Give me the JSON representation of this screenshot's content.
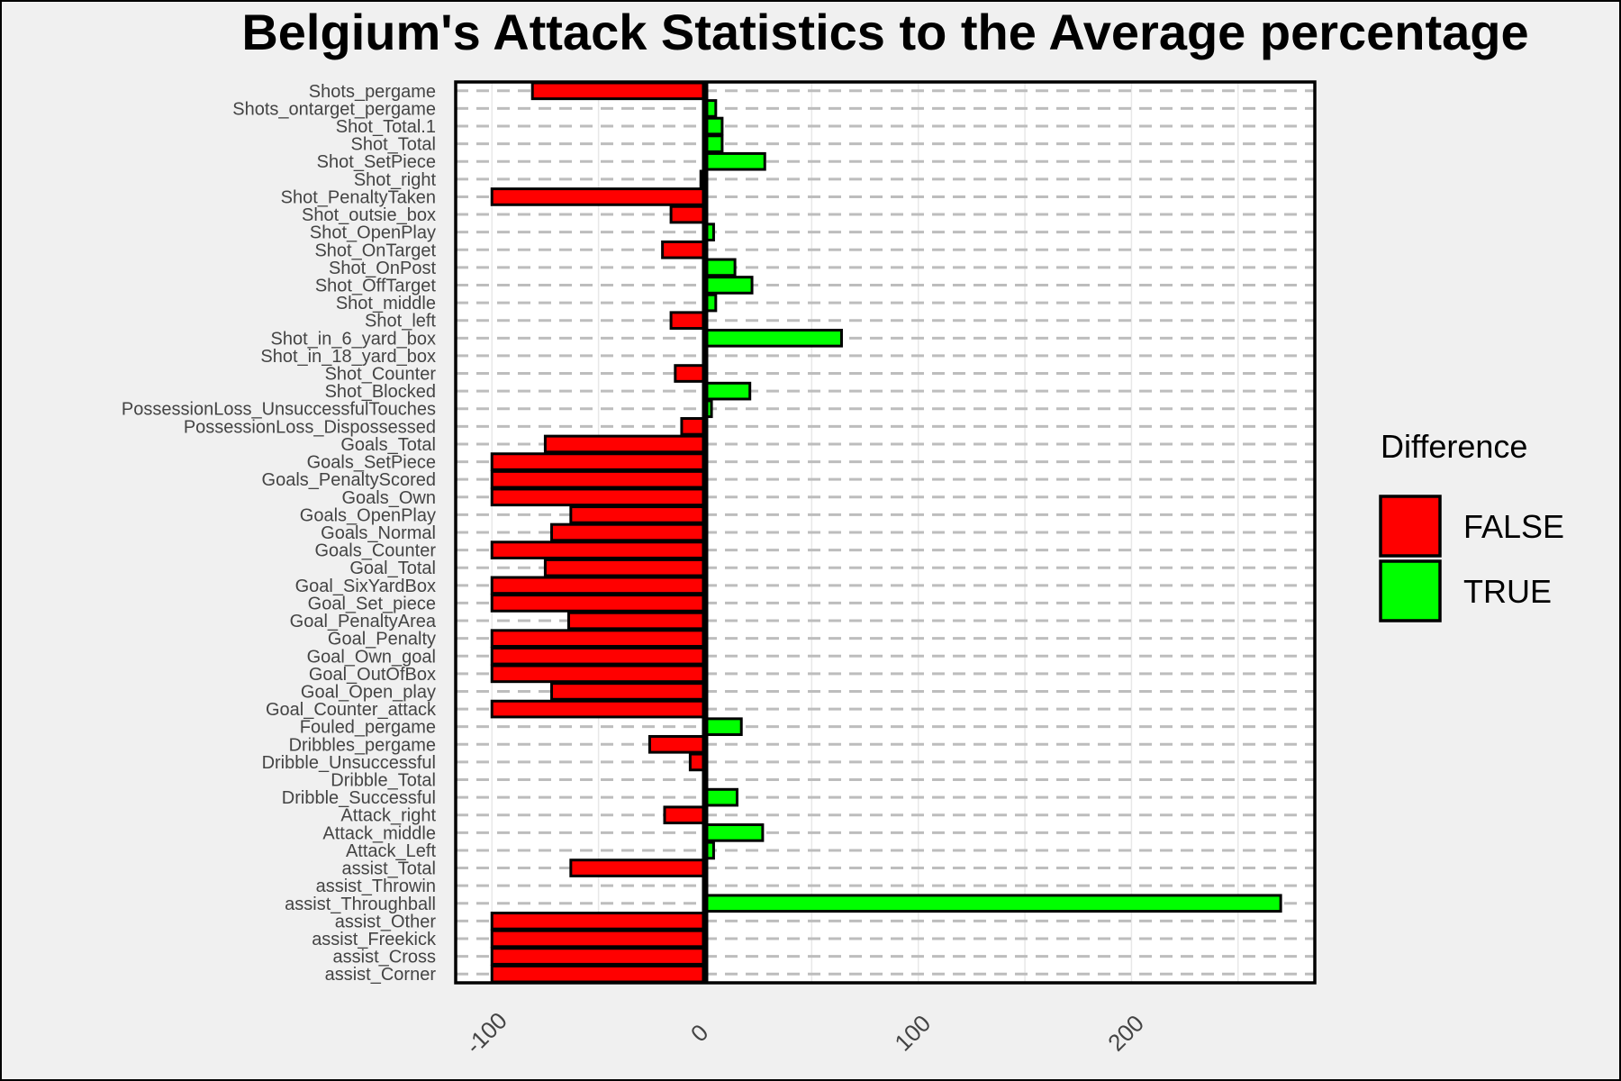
{
  "chart_data": {
    "type": "bar",
    "orientation": "horizontal",
    "title": "Belgium's Attack Statistics to the Average percentage",
    "xlabel": "",
    "ylabel": "",
    "xlim": [
      -117,
      286
    ],
    "xticks": [
      -100,
      0,
      100,
      200
    ],
    "xtick_labels": [
      "-100",
      "0",
      "100",
      "200"
    ],
    "grid": "dashed horizontal, light vertical",
    "legend": {
      "title": "Difference",
      "position": "right",
      "entries": [
        {
          "label": "FALSE",
          "color": "#ff0000"
        },
        {
          "label": "TRUE",
          "color": "#00ff00"
        }
      ]
    },
    "categories": [
      "Shots_pergame",
      "Shots_ontarget_pergame",
      "Shot_Total.1",
      "Shot_Total",
      "Shot_SetPiece",
      "Shot_right",
      "Shot_PenaltyTaken",
      "Shot_outsie_box",
      "Shot_OpenPlay",
      "Shot_OnTarget",
      "Shot_OnPost",
      "Shot_OffTarget",
      "Shot_middle",
      "Shot_left",
      "Shot_in_6_yard_box",
      "Shot_in_18_yard_box",
      "Shot_Counter",
      "Shot_Blocked",
      "PossessionLoss_UnsuccessfulTouches",
      "PossessionLoss_Dispossessed",
      "Goals_Total",
      "Goals_SetPiece",
      "Goals_PenaltyScored",
      "Goals_Own",
      "Goals_OpenPlay",
      "Goals_Normal",
      "Goals_Counter",
      "Goal_Total",
      "Goal_SixYardBox",
      "Goal_Set_piece",
      "Goal_PenaltyArea",
      "Goal_Penalty",
      "Goal_Own_goal",
      "Goal_OutOfBox",
      "Goal_Open_play",
      "Goal_Counter_attack",
      "Fouled_pergame",
      "Dribbles_pergame",
      "Dribble_Unsuccessful",
      "Dribble_Total",
      "Dribble_Successful",
      "Attack_right",
      "Attack_middle",
      "Attack_Left",
      "assist_Total",
      "assist_Throwin",
      "assist_Throughball",
      "assist_Other",
      "assist_Freekick",
      "assist_Cross",
      "assist_Corner"
    ],
    "values": [
      -81,
      5,
      8,
      8,
      28,
      -2,
      -100,
      -16,
      4,
      -20,
      14,
      22,
      5,
      -16,
      64,
      0,
      -14,
      21,
      3,
      -11,
      -75,
      -100,
      -100,
      -100,
      -63,
      -72,
      -100,
      -75,
      -100,
      -100,
      -64,
      -100,
      -100,
      -100,
      -72,
      -100,
      17,
      -26,
      -7,
      0,
      15,
      -19,
      27,
      4,
      -63,
      0,
      270,
      -100,
      -100,
      -100,
      -100
    ],
    "colors": {
      "negative": "#ff0000",
      "positive": "#00ff00",
      "outline": "#000000"
    }
  }
}
